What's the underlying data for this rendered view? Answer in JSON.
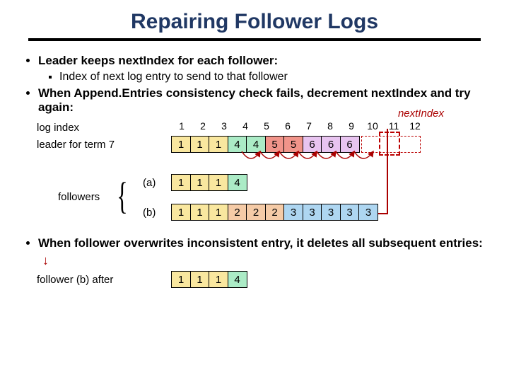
{
  "title": "Repairing Follower Logs",
  "bullets": {
    "b1": "Leader keeps nextIndex for each follower:",
    "b1a": "Index of next log entry to send to that follower",
    "b2": "When Append.Entries consistency check fails, decrement nextIndex and try again:",
    "b2_label": "nextIndex",
    "b3": "When follower overwrites inconsistent entry, it deletes all subsequent entries:"
  },
  "labels": {
    "logindex": "log index",
    "leader": "leader for term 7",
    "a": "(a)",
    "b": "(b)",
    "followers": "followers",
    "after": "follower (b) after"
  },
  "indices": [
    "1",
    "2",
    "3",
    "4",
    "5",
    "6",
    "7",
    "8",
    "9",
    "10",
    "11",
    "12"
  ],
  "leader_row": [
    {
      "v": "1",
      "c": "#f9e79f"
    },
    {
      "v": "1",
      "c": "#f9e79f"
    },
    {
      "v": "1",
      "c": "#f9e79f"
    },
    {
      "v": "4",
      "c": "#abebc6"
    },
    {
      "v": "4",
      "c": "#abebc6"
    },
    {
      "v": "5",
      "c": "#f1948a"
    },
    {
      "v": "5",
      "c": "#f1948a"
    },
    {
      "v": "6",
      "c": "#e8c4f0"
    },
    {
      "v": "6",
      "c": "#e8c4f0"
    },
    {
      "v": "6",
      "c": "#e8c4f0"
    }
  ],
  "row_a": [
    {
      "v": "1",
      "c": "#f9e79f"
    },
    {
      "v": "1",
      "c": "#f9e79f"
    },
    {
      "v": "1",
      "c": "#f9e79f"
    },
    {
      "v": "4",
      "c": "#abebc6"
    }
  ],
  "row_b": [
    {
      "v": "1",
      "c": "#f9e79f"
    },
    {
      "v": "1",
      "c": "#f9e79f"
    },
    {
      "v": "1",
      "c": "#f9e79f"
    },
    {
      "v": "2",
      "c": "#f5cba7"
    },
    {
      "v": "2",
      "c": "#f5cba7"
    },
    {
      "v": "2",
      "c": "#f5cba7"
    },
    {
      "v": "3",
      "c": "#aed6f1"
    },
    {
      "v": "3",
      "c": "#aed6f1"
    },
    {
      "v": "3",
      "c": "#aed6f1"
    },
    {
      "v": "3",
      "c": "#aed6f1"
    },
    {
      "v": "3",
      "c": "#aed6f1"
    }
  ],
  "row_after": [
    {
      "v": "1",
      "c": "#f9e79f"
    },
    {
      "v": "1",
      "c": "#f9e79f"
    },
    {
      "v": "1",
      "c": "#f9e79f"
    },
    {
      "v": "4",
      "c": "#abebc6"
    }
  ],
  "colors": {
    "title": "#203864",
    "accent": "#a00000"
  }
}
